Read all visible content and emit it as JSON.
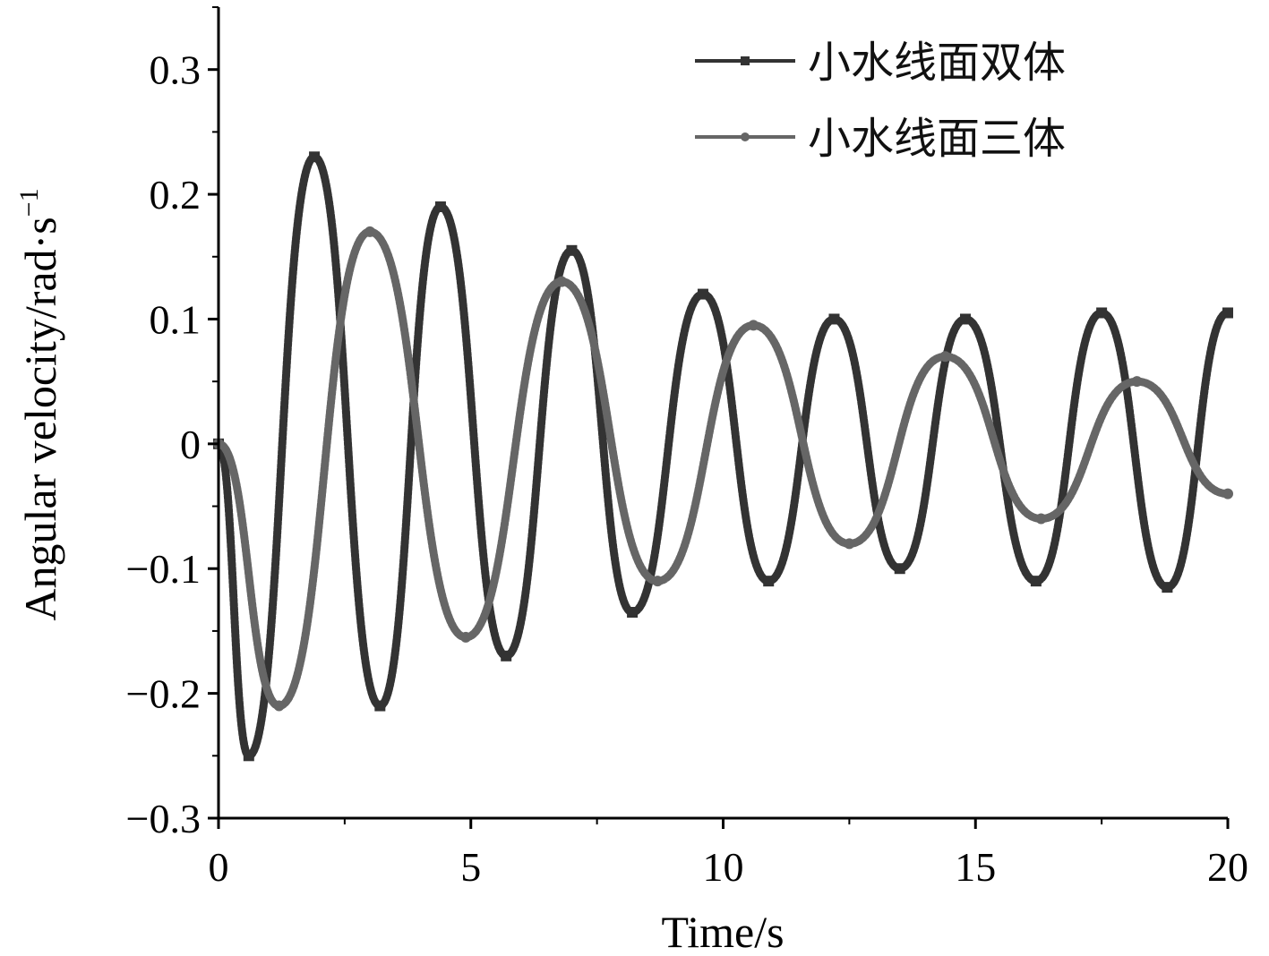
{
  "chart_data": {
    "type": "line",
    "xlabel": "Time/s",
    "ylabel": "Angular velocity/rad·s",
    "ylabel_superscript": "−1",
    "xlim": [
      0,
      20
    ],
    "ylim": [
      -0.3,
      0.35
    ],
    "xticks": [
      0,
      5,
      10,
      15,
      20
    ],
    "xtick_labels": [
      "0",
      "5",
      "10",
      "15",
      "20"
    ],
    "yticks": [
      -0.3,
      -0.2,
      -0.1,
      0,
      0.1,
      0.2,
      0.3
    ],
    "ytick_labels": [
      "−0.3",
      "−0.2",
      "−0.1",
      "0",
      "0.1",
      "0.2",
      "0.3"
    ],
    "grid": false,
    "legend_position": "top-right",
    "series": [
      {
        "name": "小水线面双体",
        "color": "#333333",
        "marker": "square",
        "x": [
          0,
          0.6,
          1.9,
          3.2,
          4.4,
          5.7,
          7.0,
          8.2,
          9.6,
          10.9,
          12.2,
          13.5,
          14.8,
          16.2,
          17.5,
          18.8,
          20.0
        ],
        "y": [
          0,
          -0.25,
          0.23,
          -0.21,
          0.19,
          -0.17,
          0.155,
          -0.135,
          0.12,
          -0.11,
          0.1,
          -0.1,
          0.1,
          -0.11,
          0.105,
          -0.115,
          0.105
        ]
      },
      {
        "name": "小水线面三体",
        "color": "#666666",
        "marker": "circle",
        "x": [
          0,
          1.2,
          3.0,
          4.9,
          6.8,
          8.7,
          10.6,
          12.5,
          14.4,
          16.3,
          18.2,
          20.0
        ],
        "y": [
          0,
          -0.21,
          0.17,
          -0.155,
          0.13,
          -0.11,
          0.095,
          -0.08,
          0.07,
          -0.06,
          0.05,
          -0.04
        ]
      }
    ]
  }
}
